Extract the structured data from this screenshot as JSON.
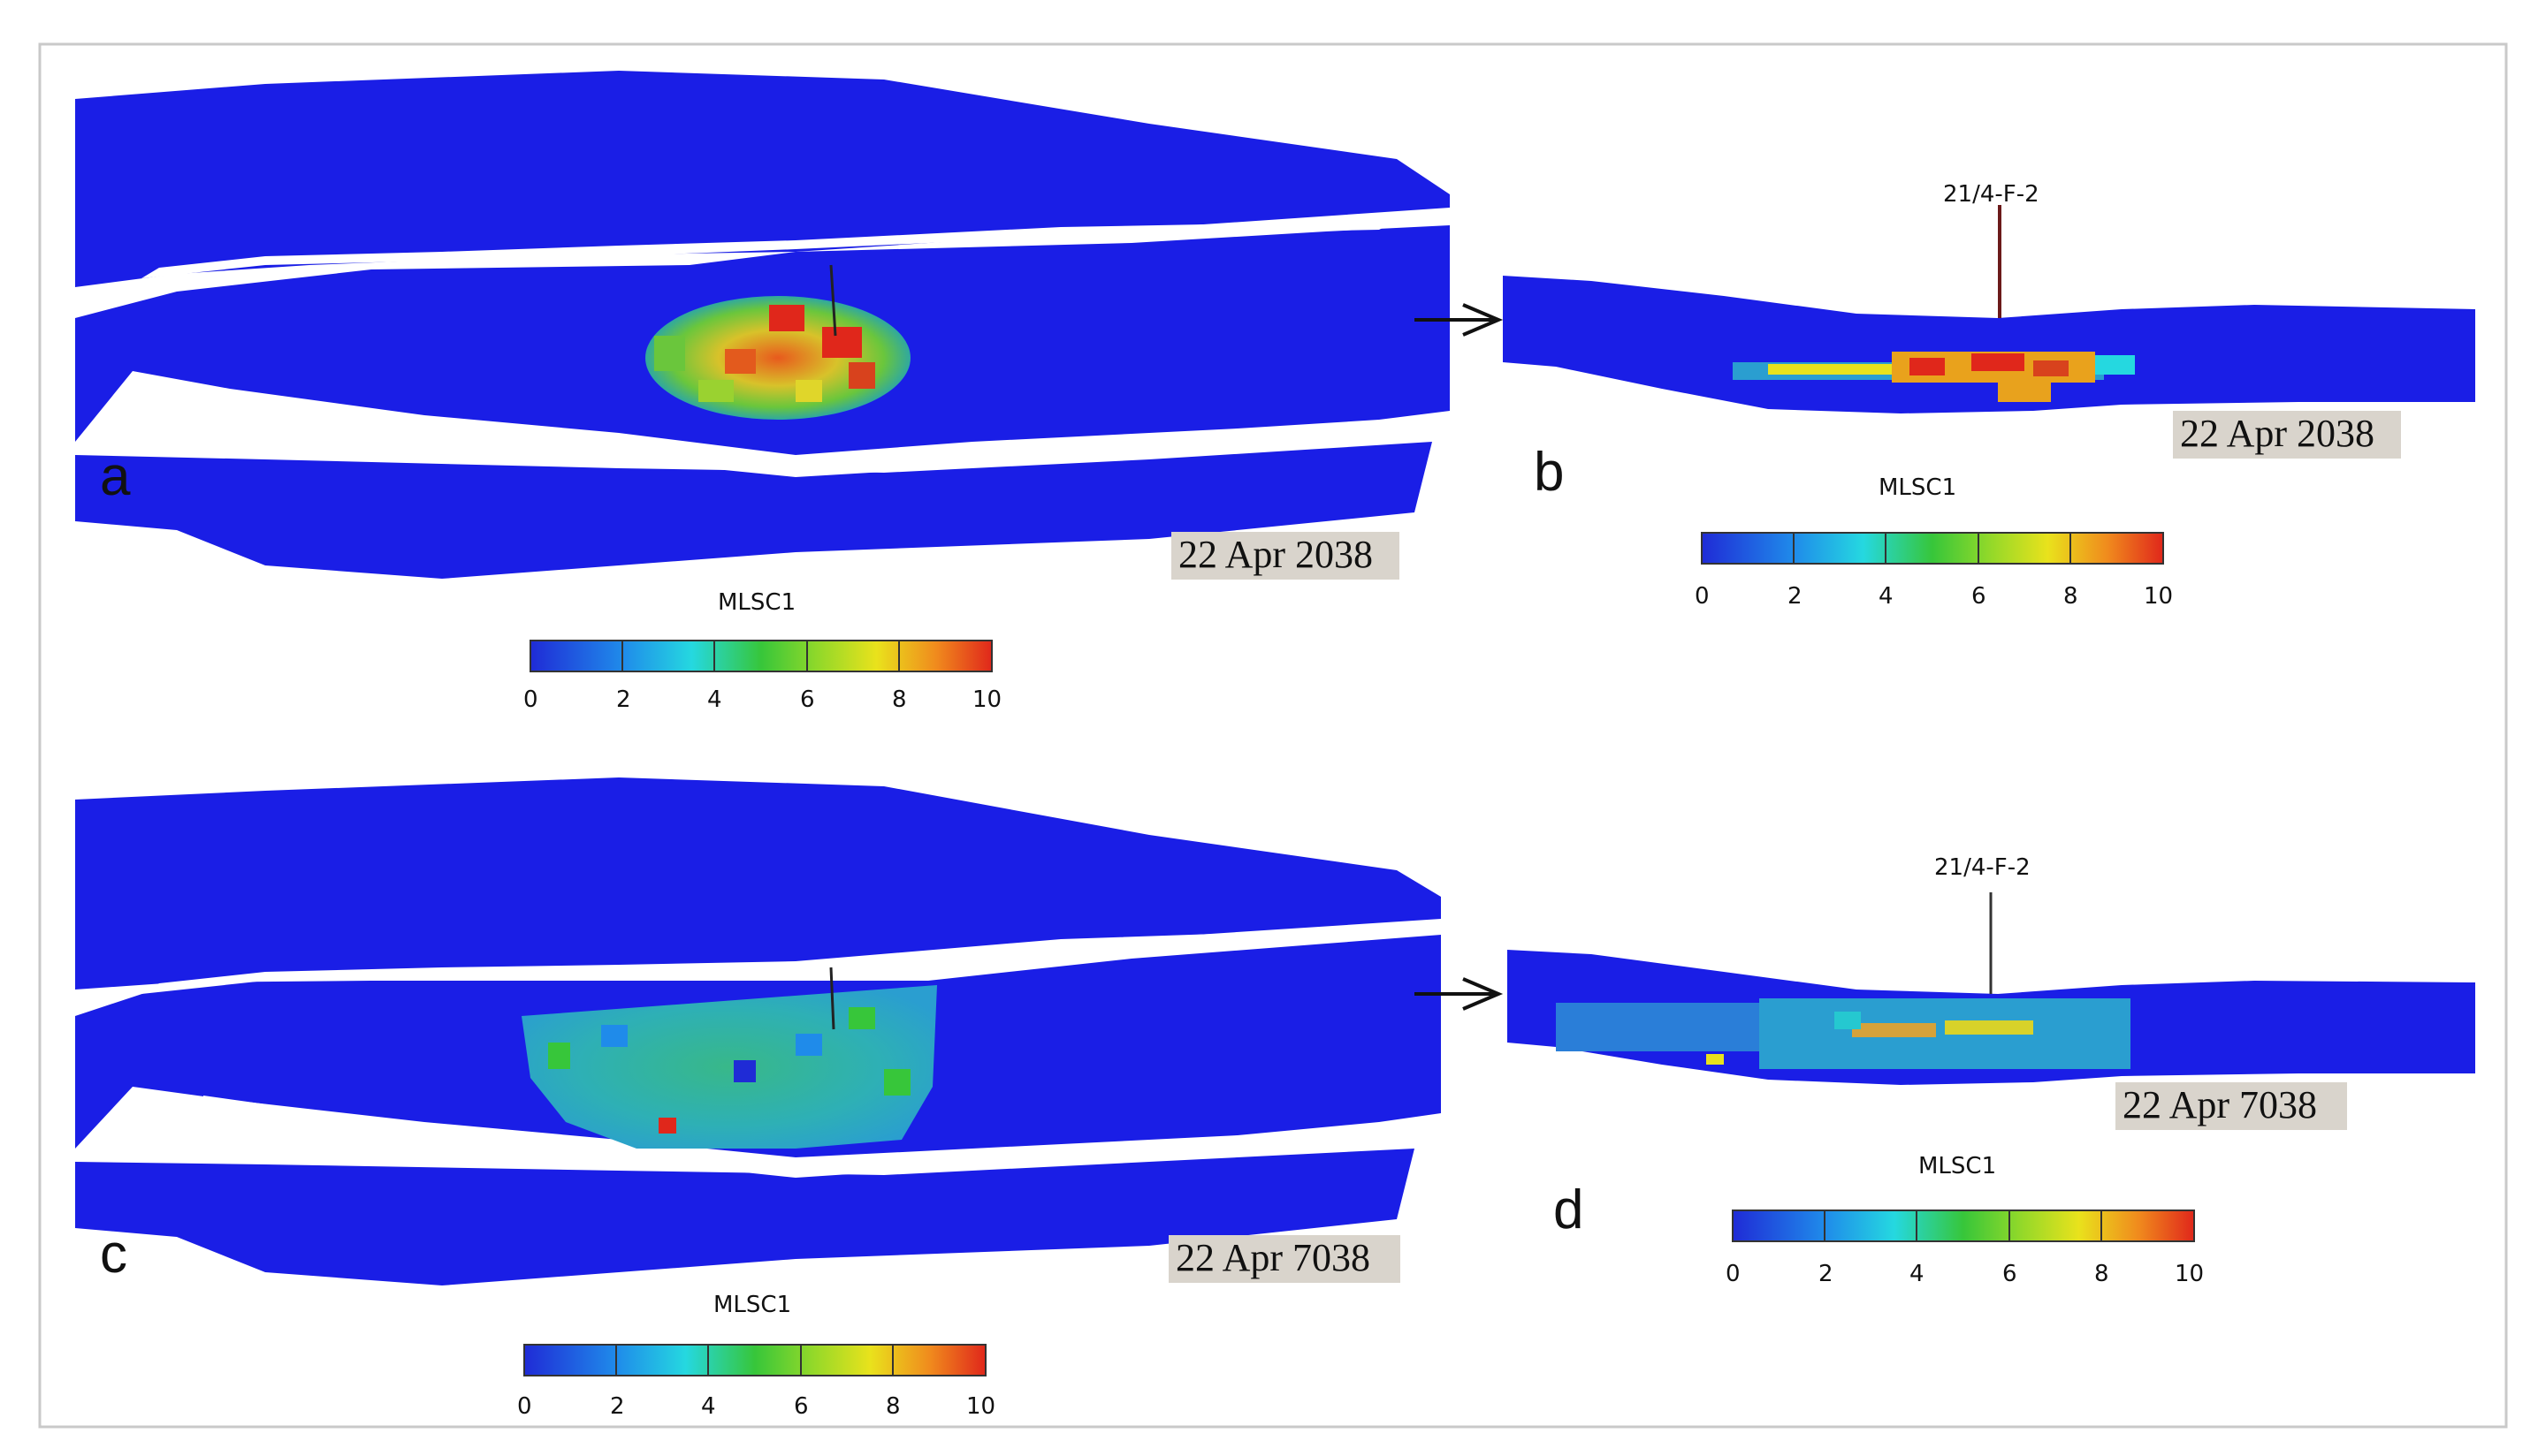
{
  "panels": [
    {
      "id": "a",
      "letter": "a",
      "date": "22 Apr 2038",
      "colorbar": {
        "title": "MLSC1",
        "ticks": [
          "0",
          "2",
          "4",
          "6",
          "8",
          "10"
        ]
      }
    },
    {
      "id": "b",
      "letter": "b",
      "date": "22 Apr 2038",
      "well": "21/4-F-2",
      "colorbar": {
        "title": "MLSC1",
        "ticks": [
          "0",
          "2",
          "4",
          "6",
          "8",
          "10"
        ]
      }
    },
    {
      "id": "c",
      "letter": "c",
      "date": "22 Apr 7038",
      "colorbar": {
        "title": "MLSC1",
        "ticks": [
          "0",
          "2",
          "4",
          "6",
          "8",
          "10"
        ]
      }
    },
    {
      "id": "d",
      "letter": "d",
      "date": "22 Apr 7038",
      "well": "21/4-F-2",
      "colorbar": {
        "title": "MLSC1",
        "ticks": [
          "0",
          "2",
          "4",
          "6",
          "8",
          "10"
        ]
      }
    }
  ],
  "colors": {
    "reservoir_blue": "#1a1ee6",
    "background": "#ffffff",
    "label_box": "#d9d4cc",
    "border": "#c9c9c9"
  }
}
